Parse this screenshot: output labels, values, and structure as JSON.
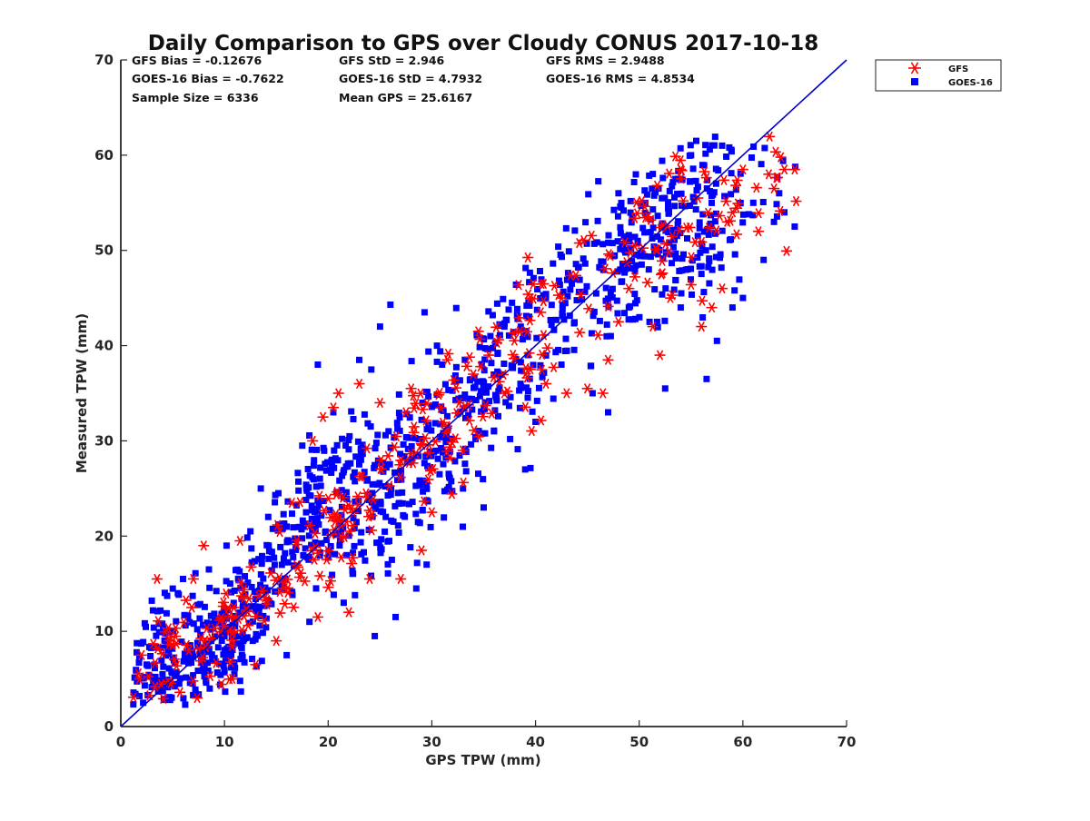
{
  "chart_data": {
    "type": "scatter",
    "title": "Daily Comparison to GPS over Cloudy CONUS 2017-10-18",
    "xlabel": "GPS TPW (mm)",
    "ylabel": "Measured TPW (mm)",
    "xlim": [
      0,
      70
    ],
    "ylim": [
      0,
      70
    ],
    "x_ticks": [
      "0",
      "10",
      "20",
      "30",
      "40",
      "50",
      "60",
      "70"
    ],
    "y_ticks": [
      "0",
      "10",
      "20",
      "30",
      "40",
      "50",
      "60",
      "70"
    ],
    "grid": false,
    "legend_position": "outside top-right",
    "stats": [
      [
        "GFS Bias = -0.12676",
        "GFS StD = 2.946",
        "GFS RMS = 2.9488"
      ],
      [
        "GOES-16 Bias = -0.7622",
        "GOES-16 StD = 4.7932",
        "GOES-16 RMS = 4.8534"
      ],
      [
        "Sample Size = 6336",
        "Mean GPS = 25.6167",
        ""
      ]
    ],
    "reference_line": {
      "from": [
        0,
        0
      ],
      "to": [
        70,
        70
      ],
      "color": "#0000cc"
    },
    "series": [
      {
        "name": "GOES-16",
        "marker": "square",
        "color": "#0000ff",
        "clusters": [
          [
            [
              2,
              5
            ],
            [
              4,
              10
            ],
            [
              5,
              4
            ],
            [
              6,
              8
            ],
            [
              8,
              6
            ],
            [
              10,
              12
            ],
            [
              12,
              10
            ],
            [
              14,
              15
            ],
            [
              9,
              9
            ]
          ],
          [
            [
              15,
              18
            ],
            [
              18,
              22
            ],
            [
              20,
              25
            ],
            [
              22,
              20
            ],
            [
              24,
              27
            ],
            [
              26,
              22
            ],
            [
              28,
              25
            ],
            [
              21,
              28
            ]
          ],
          [
            [
              30,
              32
            ],
            [
              32,
              34
            ],
            [
              36,
              37
            ],
            [
              38,
              40
            ],
            [
              34,
              30
            ],
            [
              40,
              43
            ],
            [
              42,
              41
            ]
          ],
          [
            [
              48,
              50
            ],
            [
              50,
              52
            ],
            [
              52,
              49
            ],
            [
              54,
              55
            ],
            [
              56,
              51
            ],
            [
              58,
              53
            ],
            [
              55,
              58
            ],
            [
              52,
              54
            ]
          ]
        ],
        "points": [
          [
            1.8,
            3.2
          ],
          [
            2.5,
            6.5
          ],
          [
            3.1,
            12.2
          ],
          [
            4.2,
            2.8
          ],
          [
            5.5,
            14.0
          ],
          [
            6.0,
            15.5
          ],
          [
            7.2,
            3.5
          ],
          [
            8.5,
            16.5
          ],
          [
            10.2,
            19.0
          ],
          [
            11.5,
            4.8
          ],
          [
            12.5,
            20.5
          ],
          [
            13.5,
            25.0
          ],
          [
            15.2,
            24.5
          ],
          [
            16.0,
            7.5
          ],
          [
            17.5,
            29.5
          ],
          [
            18.2,
            11.0
          ],
          [
            19.0,
            38.0
          ],
          [
            20.5,
            33.0
          ],
          [
            21.5,
            13.0
          ],
          [
            23.0,
            38.5
          ],
          [
            24.5,
            9.5
          ],
          [
            25.0,
            42.0
          ],
          [
            26.0,
            44.3
          ],
          [
            26.5,
            11.5
          ],
          [
            28.5,
            14.5
          ],
          [
            29.5,
            17.0
          ],
          [
            29.3,
            43.5
          ],
          [
            30.5,
            40.0
          ],
          [
            31.0,
            38.0
          ],
          [
            33.0,
            25.0
          ],
          [
            35.0,
            23.0
          ],
          [
            36.0,
            31.0
          ],
          [
            37.0,
            42.0
          ],
          [
            39.0,
            27.0
          ],
          [
            40.0,
            32.0
          ],
          [
            41.0,
            45.0
          ],
          [
            42.5,
            38.0
          ],
          [
            43.5,
            46.5
          ],
          [
            45.5,
            35.0
          ],
          [
            47.0,
            33.0
          ],
          [
            48.0,
            56.0
          ],
          [
            49.0,
            44.0
          ],
          [
            51.0,
            42.5
          ],
          [
            52.5,
            35.5
          ],
          [
            53.5,
            57.5
          ],
          [
            54.0,
            44.0
          ],
          [
            55.0,
            60.0
          ],
          [
            55.5,
            61.5
          ],
          [
            56.5,
            36.5
          ],
          [
            57.5,
            40.5
          ],
          [
            58.0,
            61.0
          ],
          [
            59.0,
            44.0
          ],
          [
            60.0,
            45.0
          ],
          [
            61.0,
            55.0
          ],
          [
            62.0,
            49.0
          ],
          [
            63.0,
            53.0
          ],
          [
            64.0,
            54.0
          ],
          [
            65.0,
            52.5
          ],
          [
            63.5,
            56.0
          ]
        ]
      },
      {
        "name": "GFS",
        "marker": "asterisk",
        "color": "#ff0000",
        "clusters": [
          [
            [
              3,
              6
            ],
            [
              5,
              8
            ],
            [
              7,
              7
            ],
            [
              9,
              10
            ],
            [
              11,
              11
            ],
            [
              13,
              13
            ],
            [
              15,
              15
            ]
          ],
          [
            [
              18,
              19
            ],
            [
              20,
              21
            ],
            [
              22,
              22
            ],
            [
              24,
              24
            ],
            [
              26,
              26
            ],
            [
              28,
              27
            ]
          ],
          [
            [
              30,
              31
            ],
            [
              32,
              33
            ],
            [
              36,
              35
            ],
            [
              38,
              39
            ],
            [
              40,
              40
            ],
            [
              42,
              42
            ]
          ],
          [
            [
              50,
              50
            ],
            [
              52,
              52
            ],
            [
              54,
              54
            ],
            [
              56,
              55
            ],
            [
              58,
              57
            ],
            [
              60,
              56
            ]
          ]
        ],
        "points": [
          [
            1.8,
            5.0
          ],
          [
            2.0,
            7.5
          ],
          [
            3.5,
            15.5
          ],
          [
            7.0,
            15.5
          ],
          [
            8.0,
            19.0
          ],
          [
            11.5,
            19.5
          ],
          [
            13.0,
            6.5
          ],
          [
            15.0,
            9.0
          ],
          [
            16.5,
            23.5
          ],
          [
            18.5,
            30.0
          ],
          [
            19.0,
            11.5
          ],
          [
            19.5,
            32.5
          ],
          [
            20.5,
            33.5
          ],
          [
            21.0,
            35.0
          ],
          [
            22.0,
            12.0
          ],
          [
            23.0,
            36.0
          ],
          [
            24.0,
            15.5
          ],
          [
            25.0,
            34.0
          ],
          [
            27.0,
            15.5
          ],
          [
            27.5,
            33.0
          ],
          [
            28.0,
            35.5
          ],
          [
            29.0,
            18.5
          ],
          [
            30.0,
            22.5
          ],
          [
            31.5,
            38.5
          ],
          [
            33.0,
            29.0
          ],
          [
            34.0,
            37.0
          ],
          [
            34.5,
            41.5
          ],
          [
            35.5,
            39.0
          ],
          [
            37.0,
            35.0
          ],
          [
            38.5,
            41.5
          ],
          [
            39.5,
            37.5
          ],
          [
            40.5,
            43.5
          ],
          [
            41.0,
            36.0
          ],
          [
            42.5,
            45.0
          ],
          [
            43.0,
            35.0
          ],
          [
            45.0,
            35.5
          ],
          [
            46.5,
            35.0
          ],
          [
            47.0,
            38.5
          ],
          [
            48.0,
            42.5
          ],
          [
            49.0,
            46.0
          ],
          [
            52.0,
            39.0
          ],
          [
            53.0,
            45.0
          ],
          [
            54.0,
            58.5
          ],
          [
            56.0,
            42.0
          ],
          [
            57.0,
            44.0
          ],
          [
            58.0,
            46.0
          ],
          [
            59.0,
            54.0
          ],
          [
            60.0,
            58.5
          ],
          [
            61.5,
            52.0
          ],
          [
            62.5,
            58.0
          ],
          [
            63.0,
            56.5
          ],
          [
            64.0,
            58.5
          ],
          [
            65.0,
            58.5
          ],
          [
            58.5,
            53.0
          ]
        ]
      }
    ]
  }
}
